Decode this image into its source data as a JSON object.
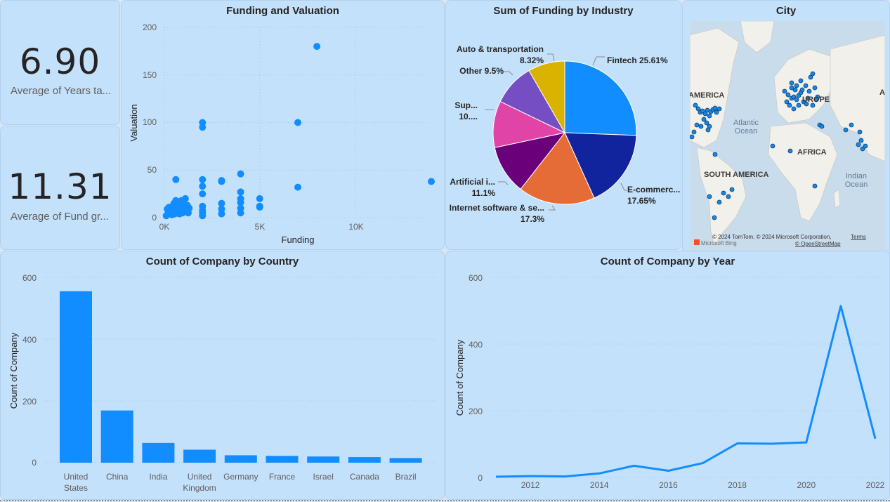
{
  "kpis": [
    {
      "value": "6.90",
      "label": "Average of Years ta..."
    },
    {
      "value": "11.31",
      "label": "Average of Fund gr..."
    }
  ],
  "scatter": {
    "title": "Funding and Valuation",
    "xlabel": "Funding",
    "ylabel": "Valuation",
    "x_ticks": [
      "0K",
      "5K",
      "10K"
    ],
    "y_ticks": [
      "0",
      "50",
      "100",
      "150",
      "200"
    ]
  },
  "pie": {
    "title": "Sum of Funding by Industry",
    "labels": {
      "fintech": "Fintech 25.61%",
      "ecommerce_name": "E-commerc...",
      "ecommerce_pct": "17.65%",
      "internet_name": "Internet software & se...",
      "internet_pct": "17.3%",
      "ai_name": "Artificial i...",
      "ai_pct": "11.1%",
      "sup_name": "Sup...",
      "sup_pct": "10....",
      "other": "Other 9.5%",
      "auto_name": "Auto & transportation",
      "auto_pct": "8.32%"
    }
  },
  "map": {
    "title": "City",
    "labels": {
      "america": "AMERICA",
      "europe": "UROPE",
      "atlantic1": "Atlantic",
      "atlantic2": "Ocean",
      "africa": "AFRICA",
      "south_america": "SOUTH AMERICA",
      "indian1": "Indian",
      "indian2": "Ocean",
      "asia_edge": "A"
    },
    "attribution": "© 2024 TomTom, © 2024 Microsoft Corporation,",
    "terms": "Terms",
    "osm": "© OpenStreetMap",
    "bing": "Microsoft Bing"
  },
  "colors": {
    "accent": "#118dff",
    "tile_bg": "#c4e1fb",
    "fintech": "#118dff",
    "ecommerce": "#12239e",
    "internet": "#e66c37",
    "ai": "#6b007b",
    "sup": "#e044a7",
    "other": "#744ec2",
    "auto": "#d9b300"
  },
  "chart_data": [
    {
      "type": "scatter",
      "title": "Funding and Valuation",
      "xlabel": "Funding",
      "ylabel": "Valuation",
      "xlim": [
        0,
        14000
      ],
      "ylim": [
        0,
        200
      ],
      "points": [
        [
          100,
          2
        ],
        [
          200,
          5
        ],
        [
          300,
          8
        ],
        [
          400,
          3
        ],
        [
          500,
          10
        ],
        [
          600,
          6
        ],
        [
          700,
          12
        ],
        [
          800,
          4
        ],
        [
          900,
          9
        ],
        [
          1000,
          7
        ],
        [
          250,
          11
        ],
        [
          450,
          7
        ],
        [
          650,
          9
        ],
        [
          850,
          11
        ],
        [
          950,
          5
        ],
        [
          1050,
          8
        ],
        [
          350,
          6
        ],
        [
          550,
          4
        ],
        [
          750,
          8
        ],
        [
          150,
          9
        ],
        [
          500,
          15
        ],
        [
          600,
          18
        ],
        [
          800,
          14
        ],
        [
          1000,
          16
        ],
        [
          1100,
          20
        ],
        [
          1200,
          13
        ],
        [
          1300,
          10
        ],
        [
          1250,
          5
        ],
        [
          700,
          16
        ],
        [
          900,
          18
        ],
        [
          600,
          40
        ],
        [
          2000,
          100
        ],
        [
          2000,
          95
        ],
        [
          2000,
          40
        ],
        [
          2000,
          33
        ],
        [
          2000,
          25
        ],
        [
          2000,
          12
        ],
        [
          2000,
          8
        ],
        [
          2000,
          5
        ],
        [
          2000,
          2
        ],
        [
          3000,
          39
        ],
        [
          3000,
          38
        ],
        [
          3000,
          15
        ],
        [
          3000,
          9
        ],
        [
          3000,
          4
        ],
        [
          4000,
          46
        ],
        [
          4000,
          27
        ],
        [
          4000,
          20
        ],
        [
          4000,
          16
        ],
        [
          4000,
          10
        ],
        [
          4000,
          5
        ],
        [
          5000,
          20
        ],
        [
          5000,
          12
        ],
        [
          5000,
          11
        ],
        [
          7000,
          100
        ],
        [
          7000,
          32
        ],
        [
          8000,
          180
        ],
        [
          14000,
          38
        ]
      ]
    },
    {
      "type": "pie",
      "title": "Sum of Funding by Industry",
      "slices": [
        {
          "label": "Fintech",
          "percent": 25.61
        },
        {
          "label": "E-commerc...",
          "percent": 17.65
        },
        {
          "label": "Internet software & se...",
          "percent": 17.3
        },
        {
          "label": "Artificial i...",
          "percent": 11.1
        },
        {
          "label": "Sup...",
          "percent": 10.52
        },
        {
          "label": "Other",
          "percent": 9.5
        },
        {
          "label": "Auto & transportation",
          "percent": 8.32
        }
      ]
    },
    {
      "type": "bar",
      "title": "Count of Company by Country",
      "ylabel": "Count of Company",
      "ylim": [
        0,
        600
      ],
      "y_ticks": [
        "0",
        "200",
        "400",
        "600"
      ],
      "categories": [
        [
          "United",
          "States"
        ],
        [
          "China"
        ],
        [
          "India"
        ],
        [
          "United",
          "Kingdom"
        ],
        [
          "Germany"
        ],
        [
          "France"
        ],
        [
          "Israel"
        ],
        [
          "Canada"
        ],
        [
          "Brazil"
        ]
      ],
      "values": [
        555,
        169,
        64,
        42,
        24,
        22,
        20,
        18,
        15
      ]
    },
    {
      "type": "line",
      "title": "Count of Company by Year",
      "ylabel": "Count of Company",
      "ylim": [
        0,
        600
      ],
      "y_ticks": [
        "0",
        "200",
        "400",
        "600"
      ],
      "x_ticks": [
        "2012",
        "2014",
        "2016",
        "2018",
        "2020",
        "2022"
      ],
      "x": [
        2011,
        2012,
        2013,
        2014,
        2015,
        2016,
        2017,
        2018,
        2019,
        2020,
        2021,
        2022
      ],
      "values": [
        2,
        4,
        3,
        12,
        35,
        20,
        43,
        102,
        101,
        105,
        514,
        116
      ]
    }
  ]
}
